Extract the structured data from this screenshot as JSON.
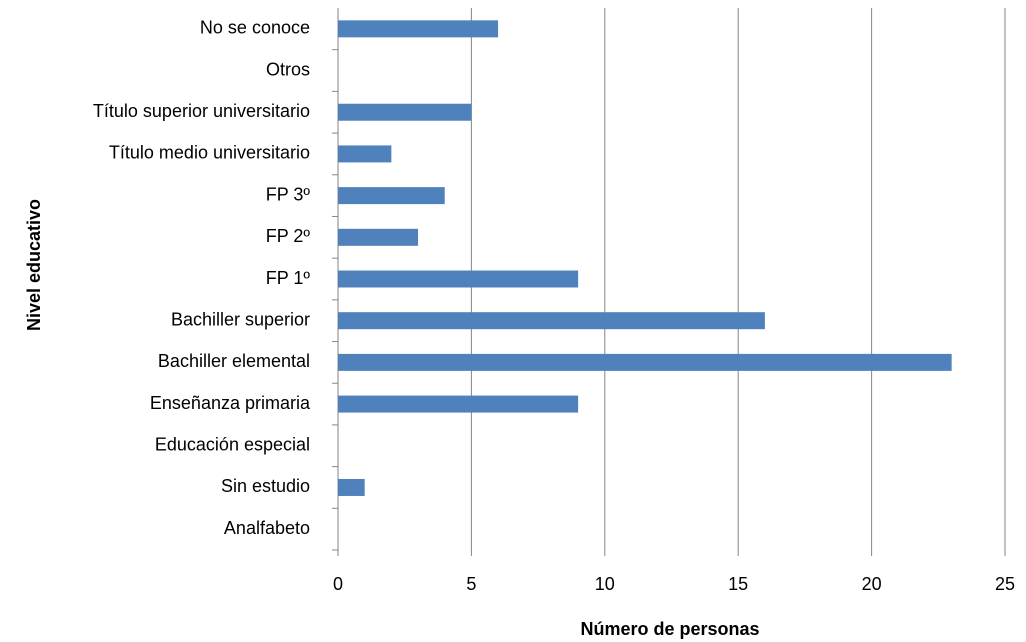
{
  "chart_data": {
    "type": "barh",
    "categories": [
      "Analfabeto",
      "Sin estudio",
      "Educación especial",
      "Enseñanza primaria",
      "Bachiller elemental",
      "Bachiller superior",
      "FP 1º",
      "FP 2º",
      "FP 3º",
      "Título medio universitario",
      "Título superior universitario",
      "Otros",
      "No se conoce"
    ],
    "values": [
      0,
      1,
      0,
      9,
      23,
      16,
      9,
      3,
      4,
      2,
      5,
      0,
      6
    ],
    "color": "#4f81bd",
    "xlabel": "Número de personas",
    "ylabel": "Nivel educativo",
    "xlim": [
      0,
      25
    ],
    "xticks": [
      0,
      5,
      10,
      15,
      20,
      25
    ],
    "grid": true
  }
}
